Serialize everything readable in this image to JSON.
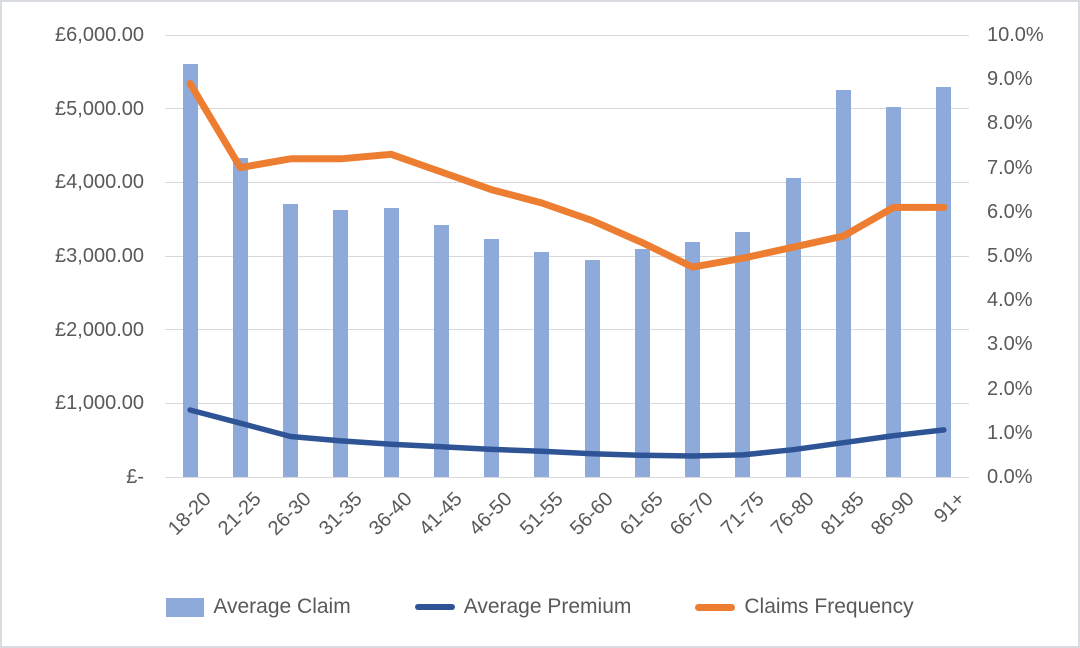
{
  "chart_data": {
    "type": "combo-bar-line",
    "categories": [
      "18-20",
      "21-25",
      "26-30",
      "31-35",
      "36-40",
      "41-45",
      "46-50",
      "51-55",
      "56-60",
      "61-65",
      "66-70",
      "71-75",
      "76-80",
      "81-85",
      "86-90",
      "91+"
    ],
    "series": [
      {
        "name": "Average Claim",
        "type": "bar",
        "axis": "left",
        "color": "#8EAADB",
        "values": [
          5610,
          4330,
          3700,
          3630,
          3650,
          3420,
          3230,
          3050,
          2940,
          3100,
          3190,
          3330,
          4060,
          5250,
          5020,
          5300
        ]
      },
      {
        "name": "Average Premium",
        "type": "line",
        "axis": "left",
        "color": "#2F5496",
        "values": [
          910,
          730,
          550,
          490,
          445,
          410,
          375,
          350,
          315,
          295,
          285,
          300,
          370,
          465,
          560,
          640
        ]
      },
      {
        "name": "Claims Frequency",
        "type": "line",
        "axis": "right",
        "unit": "%",
        "color": "#ED7D31",
        "values": [
          8.9,
          7.0,
          7.2,
          7.2,
          7.3,
          6.9,
          6.5,
          6.2,
          5.8,
          5.3,
          4.75,
          4.95,
          5.2,
          5.45,
          6.1,
          6.1
        ]
      }
    ],
    "left_axis": {
      "min": 0,
      "max": 6000,
      "tick_step": 1000,
      "tick_labels": [
        "£6,000.00",
        "£5,000.00",
        "£4,000.00",
        "£3,000.00",
        "£2,000.00",
        "£1,000.00",
        "£-"
      ]
    },
    "right_axis": {
      "min": 0,
      "max": 10,
      "tick_step": 1,
      "tick_labels": [
        "10.0%",
        "9.0%",
        "8.0%",
        "7.0%",
        "6.0%",
        "5.0%",
        "4.0%",
        "3.0%",
        "2.0%",
        "1.0%",
        "0.0%"
      ]
    },
    "grid": true,
    "legend_position": "bottom",
    "style": {
      "text_color": "#595959",
      "gridline_color": "#D9D9D9",
      "background": "#FFFFFF"
    }
  }
}
